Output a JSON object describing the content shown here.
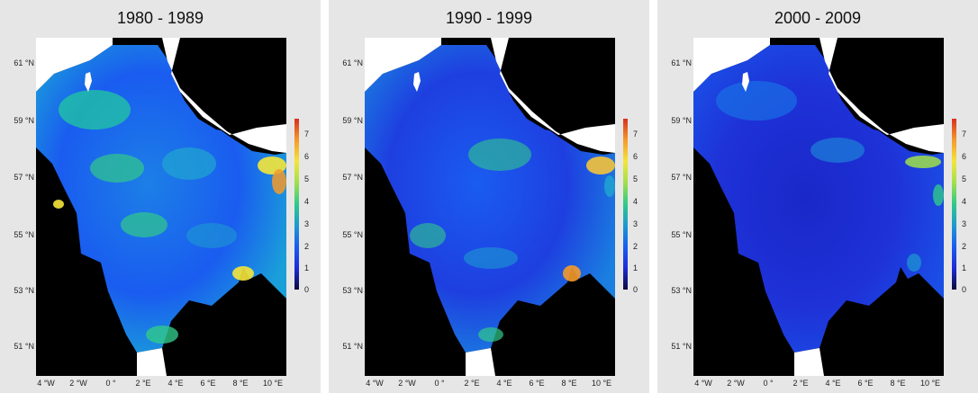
{
  "panels": [
    {
      "title": "1980 - 1989"
    },
    {
      "title": "1990 - 1999"
    },
    {
      "title": "2000 - 2009"
    }
  ],
  "lat_labels": [
    "61 °N",
    "59 °N",
    "57 °N",
    "55 °N",
    "53 °N",
    "51 °N"
  ],
  "lon_labels": [
    "4 °W",
    "2 °W",
    "0 °",
    "2 °E",
    "4 °E",
    "6 °E",
    "8 °E",
    "10 °E"
  ],
  "colorbar": {
    "ticks": [
      "7",
      "6",
      "5",
      "4",
      "3",
      "2",
      "1",
      "0"
    ],
    "min": 0,
    "max": 7.5,
    "colors": [
      "#0a0a3c",
      "#1e2bd8",
      "#1a5cf0",
      "#1c9ad0",
      "#30c98a",
      "#a0e04a",
      "#f5e53a",
      "#f59a2a",
      "#d7301f"
    ]
  },
  "colors": {
    "land": "#000000",
    "no_data": "#ffffff",
    "panel_bg": "#e6e6e6"
  }
}
